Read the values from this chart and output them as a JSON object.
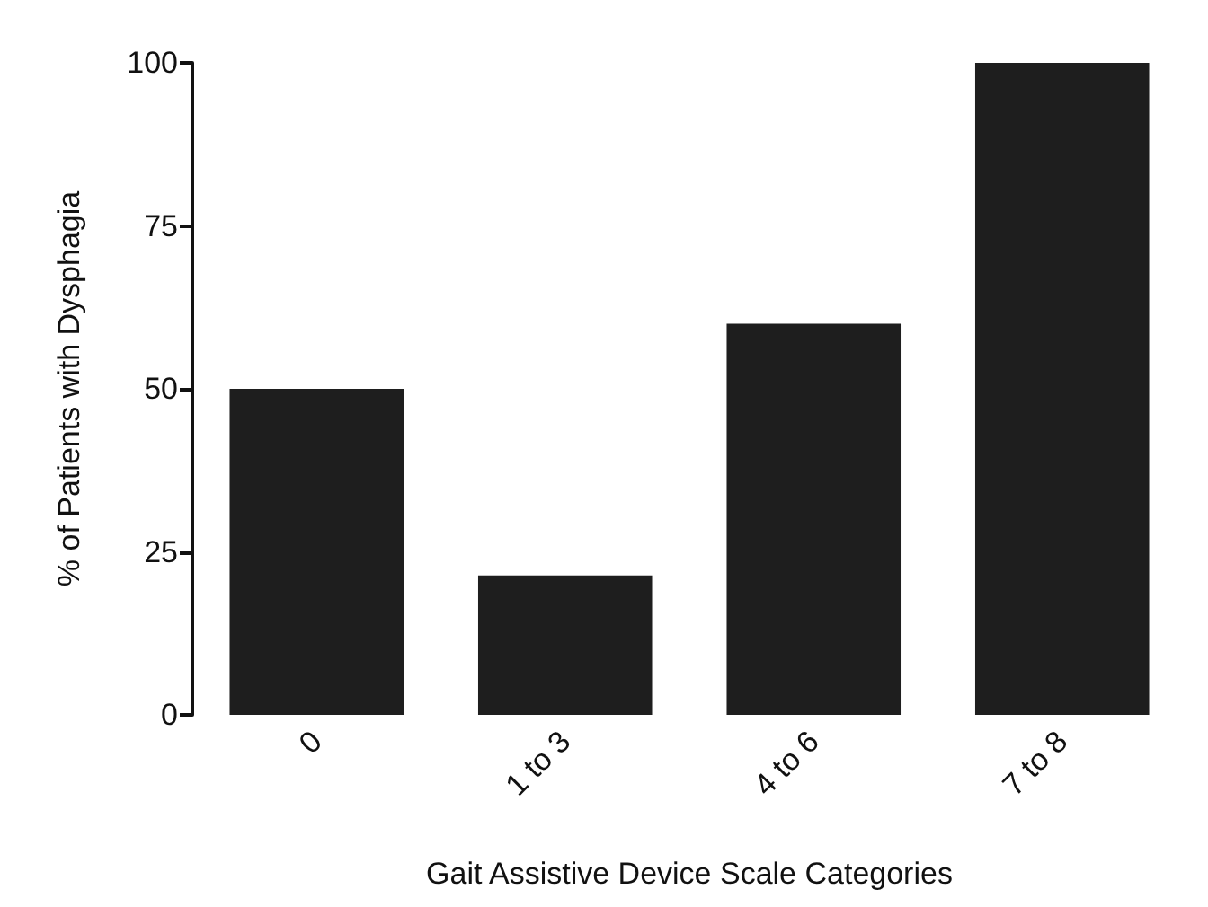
{
  "chart_data": {
    "type": "bar",
    "xlabel": "Gait Assistive Device Scale Categories",
    "ylabel": "% of Patients with Dysphagia",
    "categories": [
      "0",
      "1 to 3",
      "4 to 6",
      "7 to 8"
    ],
    "values": [
      50,
      21.4,
      60,
      100
    ],
    "color": "#1e1e1e",
    "ylim": [
      0,
      100
    ],
    "yticks": [
      0,
      25,
      50,
      75,
      100
    ],
    "grid": false
  }
}
